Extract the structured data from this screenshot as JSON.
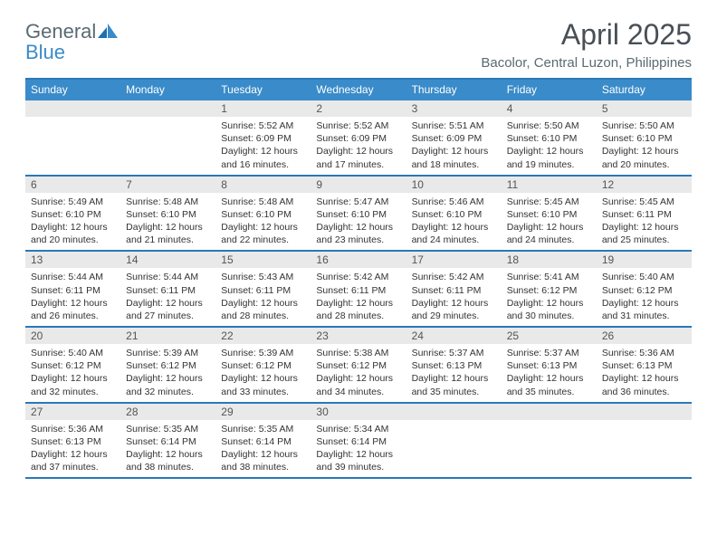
{
  "brand": {
    "word1": "General",
    "word2": "Blue"
  },
  "title": "April 2025",
  "location": "Bacolor, Central Luzon, Philippines",
  "colors": {
    "header_bar": "#3a8bc9",
    "rule": "#2a78b8",
    "daynum_bg": "#e9e9e9",
    "logo_gray": "#5a6a72",
    "logo_blue": "#3a8bc9",
    "title_color": "#484f55"
  },
  "days_of_week": [
    "Sunday",
    "Monday",
    "Tuesday",
    "Wednesday",
    "Thursday",
    "Friday",
    "Saturday"
  ],
  "weeks": [
    [
      null,
      null,
      {
        "n": "1",
        "sr": "Sunrise: 5:52 AM",
        "ss": "Sunset: 6:09 PM",
        "d1": "Daylight: 12 hours",
        "d2": "and 16 minutes."
      },
      {
        "n": "2",
        "sr": "Sunrise: 5:52 AM",
        "ss": "Sunset: 6:09 PM",
        "d1": "Daylight: 12 hours",
        "d2": "and 17 minutes."
      },
      {
        "n": "3",
        "sr": "Sunrise: 5:51 AM",
        "ss": "Sunset: 6:09 PM",
        "d1": "Daylight: 12 hours",
        "d2": "and 18 minutes."
      },
      {
        "n": "4",
        "sr": "Sunrise: 5:50 AM",
        "ss": "Sunset: 6:10 PM",
        "d1": "Daylight: 12 hours",
        "d2": "and 19 minutes."
      },
      {
        "n": "5",
        "sr": "Sunrise: 5:50 AM",
        "ss": "Sunset: 6:10 PM",
        "d1": "Daylight: 12 hours",
        "d2": "and 20 minutes."
      }
    ],
    [
      {
        "n": "6",
        "sr": "Sunrise: 5:49 AM",
        "ss": "Sunset: 6:10 PM",
        "d1": "Daylight: 12 hours",
        "d2": "and 20 minutes."
      },
      {
        "n": "7",
        "sr": "Sunrise: 5:48 AM",
        "ss": "Sunset: 6:10 PM",
        "d1": "Daylight: 12 hours",
        "d2": "and 21 minutes."
      },
      {
        "n": "8",
        "sr": "Sunrise: 5:48 AM",
        "ss": "Sunset: 6:10 PM",
        "d1": "Daylight: 12 hours",
        "d2": "and 22 minutes."
      },
      {
        "n": "9",
        "sr": "Sunrise: 5:47 AM",
        "ss": "Sunset: 6:10 PM",
        "d1": "Daylight: 12 hours",
        "d2": "and 23 minutes."
      },
      {
        "n": "10",
        "sr": "Sunrise: 5:46 AM",
        "ss": "Sunset: 6:10 PM",
        "d1": "Daylight: 12 hours",
        "d2": "and 24 minutes."
      },
      {
        "n": "11",
        "sr": "Sunrise: 5:45 AM",
        "ss": "Sunset: 6:10 PM",
        "d1": "Daylight: 12 hours",
        "d2": "and 24 minutes."
      },
      {
        "n": "12",
        "sr": "Sunrise: 5:45 AM",
        "ss": "Sunset: 6:11 PM",
        "d1": "Daylight: 12 hours",
        "d2": "and 25 minutes."
      }
    ],
    [
      {
        "n": "13",
        "sr": "Sunrise: 5:44 AM",
        "ss": "Sunset: 6:11 PM",
        "d1": "Daylight: 12 hours",
        "d2": "and 26 minutes."
      },
      {
        "n": "14",
        "sr": "Sunrise: 5:44 AM",
        "ss": "Sunset: 6:11 PM",
        "d1": "Daylight: 12 hours",
        "d2": "and 27 minutes."
      },
      {
        "n": "15",
        "sr": "Sunrise: 5:43 AM",
        "ss": "Sunset: 6:11 PM",
        "d1": "Daylight: 12 hours",
        "d2": "and 28 minutes."
      },
      {
        "n": "16",
        "sr": "Sunrise: 5:42 AM",
        "ss": "Sunset: 6:11 PM",
        "d1": "Daylight: 12 hours",
        "d2": "and 28 minutes."
      },
      {
        "n": "17",
        "sr": "Sunrise: 5:42 AM",
        "ss": "Sunset: 6:11 PM",
        "d1": "Daylight: 12 hours",
        "d2": "and 29 minutes."
      },
      {
        "n": "18",
        "sr": "Sunrise: 5:41 AM",
        "ss": "Sunset: 6:12 PM",
        "d1": "Daylight: 12 hours",
        "d2": "and 30 minutes."
      },
      {
        "n": "19",
        "sr": "Sunrise: 5:40 AM",
        "ss": "Sunset: 6:12 PM",
        "d1": "Daylight: 12 hours",
        "d2": "and 31 minutes."
      }
    ],
    [
      {
        "n": "20",
        "sr": "Sunrise: 5:40 AM",
        "ss": "Sunset: 6:12 PM",
        "d1": "Daylight: 12 hours",
        "d2": "and 32 minutes."
      },
      {
        "n": "21",
        "sr": "Sunrise: 5:39 AM",
        "ss": "Sunset: 6:12 PM",
        "d1": "Daylight: 12 hours",
        "d2": "and 32 minutes."
      },
      {
        "n": "22",
        "sr": "Sunrise: 5:39 AM",
        "ss": "Sunset: 6:12 PM",
        "d1": "Daylight: 12 hours",
        "d2": "and 33 minutes."
      },
      {
        "n": "23",
        "sr": "Sunrise: 5:38 AM",
        "ss": "Sunset: 6:12 PM",
        "d1": "Daylight: 12 hours",
        "d2": "and 34 minutes."
      },
      {
        "n": "24",
        "sr": "Sunrise: 5:37 AM",
        "ss": "Sunset: 6:13 PM",
        "d1": "Daylight: 12 hours",
        "d2": "and 35 minutes."
      },
      {
        "n": "25",
        "sr": "Sunrise: 5:37 AM",
        "ss": "Sunset: 6:13 PM",
        "d1": "Daylight: 12 hours",
        "d2": "and 35 minutes."
      },
      {
        "n": "26",
        "sr": "Sunrise: 5:36 AM",
        "ss": "Sunset: 6:13 PM",
        "d1": "Daylight: 12 hours",
        "d2": "and 36 minutes."
      }
    ],
    [
      {
        "n": "27",
        "sr": "Sunrise: 5:36 AM",
        "ss": "Sunset: 6:13 PM",
        "d1": "Daylight: 12 hours",
        "d2": "and 37 minutes."
      },
      {
        "n": "28",
        "sr": "Sunrise: 5:35 AM",
        "ss": "Sunset: 6:14 PM",
        "d1": "Daylight: 12 hours",
        "d2": "and 38 minutes."
      },
      {
        "n": "29",
        "sr": "Sunrise: 5:35 AM",
        "ss": "Sunset: 6:14 PM",
        "d1": "Daylight: 12 hours",
        "d2": "and 38 minutes."
      },
      {
        "n": "30",
        "sr": "Sunrise: 5:34 AM",
        "ss": "Sunset: 6:14 PM",
        "d1": "Daylight: 12 hours",
        "d2": "and 39 minutes."
      },
      null,
      null,
      null
    ]
  ]
}
